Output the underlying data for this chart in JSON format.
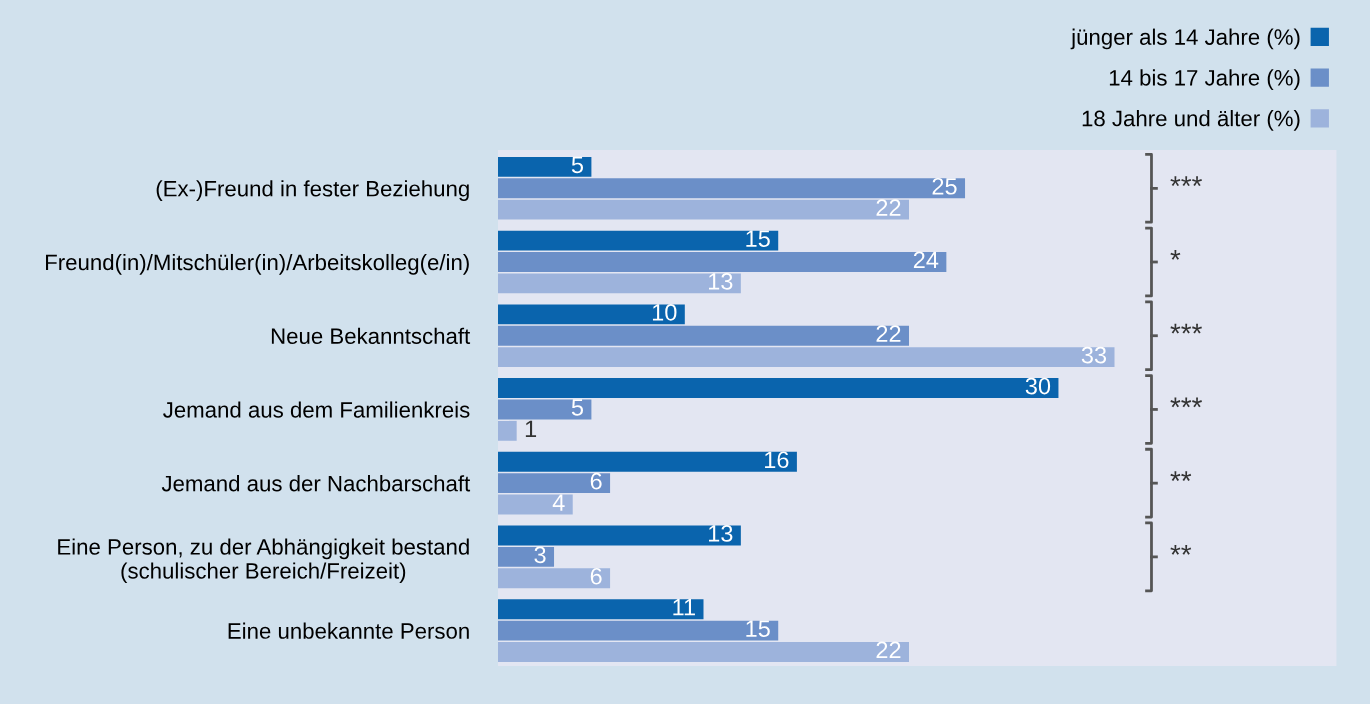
{
  "chart_data": {
    "type": "bar",
    "orientation": "horizontal",
    "categories": [
      "(Ex-)Freund in fester Beziehung",
      "Freund(in)/Mitschüler(in)/Arbeitskolleg(e/in)",
      "Neue Bekanntschaft",
      "Jemand aus dem Familienkreis",
      "Jemand aus der Nachbarschaft",
      "Eine Person, zu der Abhängigkeit bestand\n(schulischer Bereich/Freizeit)",
      "Eine unbekannte Person"
    ],
    "series": [
      {
        "name": "jünger als 14 Jahre (%)",
        "color": "#0a64ad",
        "values": [
          5,
          15,
          10,
          30,
          16,
          13,
          11
        ]
      },
      {
        "name": "14 bis 17 Jahre (%)",
        "color": "#6b8fc8",
        "values": [
          25,
          24,
          22,
          5,
          6,
          3,
          15
        ]
      },
      {
        "name": "18 Jahre und älter (%)",
        "color": "#9db3dc",
        "values": [
          22,
          13,
          33,
          1,
          4,
          6,
          22
        ]
      }
    ],
    "data_labels": true,
    "legend": "top right",
    "grid": false,
    "annotations": [
      "***",
      "*",
      "***",
      "***",
      "**",
      "**"
    ]
  }
}
